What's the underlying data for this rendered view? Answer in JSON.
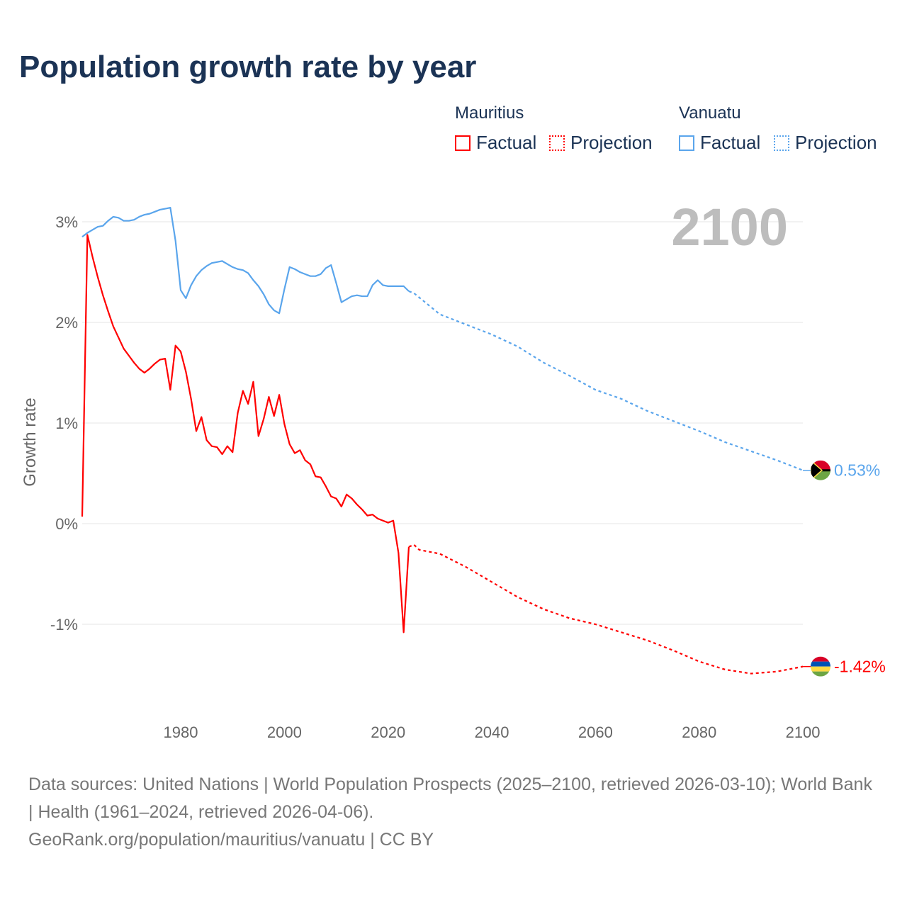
{
  "title": "Population growth rate by year",
  "legend": {
    "countries": [
      {
        "name": "Mauritius",
        "factual": "Factual",
        "projection": "Projection"
      },
      {
        "name": "Vanuatu",
        "factual": "Factual",
        "projection": "Projection"
      }
    ]
  },
  "year_display": "2100",
  "footer": {
    "line1": "Data sources: United Nations | World Population Prospects (2025–2100, retrieved 2026-03-10); World Bank | Health (1961–2024, retrieved 2026-04-06).",
    "line2": "GeoRank.org/population/mauritius/vanuatu | CC BY"
  },
  "chart_data": {
    "type": "line",
    "title": "Population growth rate by year",
    "ylabel": "Growth rate",
    "xlabel": "",
    "xlim": [
      1961,
      2100
    ],
    "ylim": [
      -1.8,
      3.3
    ],
    "x_ticks": [
      1980,
      2000,
      2020,
      2040,
      2060,
      2080,
      2100
    ],
    "y_ticks": [
      {
        "v": 3,
        "label": "3%"
      },
      {
        "v": 2,
        "label": "2%"
      },
      {
        "v": 1,
        "label": "1%"
      },
      {
        "v": 0,
        "label": "0%"
      },
      {
        "v": -1,
        "label": "-1%"
      }
    ],
    "grid": true,
    "series": [
      {
        "name": "Mauritius",
        "color": "#ff0000",
        "end_label": "-1.42%",
        "factual": {
          "start": 1961,
          "values": [
            0.07,
            2.87,
            2.65,
            2.45,
            2.27,
            2.11,
            1.96,
            1.85,
            1.74,
            1.67,
            1.6,
            1.54,
            1.5,
            1.54,
            1.59,
            1.63,
            1.64,
            1.33,
            1.77,
            1.71,
            1.51,
            1.24,
            0.92,
            1.06,
            0.83,
            0.77,
            0.76,
            0.69,
            0.77,
            0.71,
            1.1,
            1.32,
            1.19,
            1.41,
            0.87,
            1.04,
            1.26,
            1.07,
            1.28,
            0.99,
            0.79,
            0.7,
            0.73,
            0.63,
            0.59,
            0.47,
            0.46,
            0.37,
            0.27,
            0.25,
            0.17,
            0.29,
            0.25,
            0.19,
            0.14,
            0.08,
            0.09,
            0.05,
            0.03,
            0.01,
            0.03,
            -0.29,
            -1.08,
            -0.23
          ]
        },
        "projection": {
          "x": [
            2024,
            2025,
            2026,
            2030,
            2035,
            2040,
            2045,
            2050,
            2055,
            2060,
            2065,
            2070,
            2075,
            2080,
            2085,
            2090,
            2095,
            2100
          ],
          "values": [
            -0.23,
            -0.21,
            -0.26,
            -0.3,
            -0.43,
            -0.58,
            -0.73,
            -0.85,
            -0.94,
            -1.0,
            -1.08,
            -1.16,
            -1.26,
            -1.37,
            -1.45,
            -1.49,
            -1.47,
            -1.42
          ]
        }
      },
      {
        "name": "Vanuatu",
        "color": "#5aa5ec",
        "end_label": "0.53%",
        "factual": {
          "start": 1961,
          "values": [
            2.85,
            2.89,
            2.92,
            2.95,
            2.96,
            3.01,
            3.05,
            3.04,
            3.01,
            3.01,
            3.02,
            3.05,
            3.07,
            3.08,
            3.1,
            3.12,
            3.13,
            3.14,
            2.81,
            2.32,
            2.24,
            2.37,
            2.46,
            2.52,
            2.56,
            2.59,
            2.6,
            2.61,
            2.58,
            2.55,
            2.53,
            2.52,
            2.49,
            2.42,
            2.36,
            2.28,
            2.18,
            2.12,
            2.09,
            2.33,
            2.55,
            2.53,
            2.5,
            2.48,
            2.46,
            2.46,
            2.48,
            2.54,
            2.57,
            2.39,
            2.2,
            2.23,
            2.26,
            2.27,
            2.26,
            2.26,
            2.37,
            2.42,
            2.37,
            2.36,
            2.36,
            2.36,
            2.36,
            2.31
          ]
        },
        "projection": {
          "x": [
            2024,
            2025,
            2030,
            2035,
            2040,
            2045,
            2050,
            2055,
            2060,
            2065,
            2070,
            2075,
            2080,
            2085,
            2090,
            2095,
            2100
          ],
          "values": [
            2.31,
            2.29,
            2.08,
            1.98,
            1.88,
            1.76,
            1.6,
            1.47,
            1.33,
            1.24,
            1.12,
            1.02,
            0.92,
            0.81,
            0.72,
            0.63,
            0.53
          ]
        }
      }
    ]
  }
}
